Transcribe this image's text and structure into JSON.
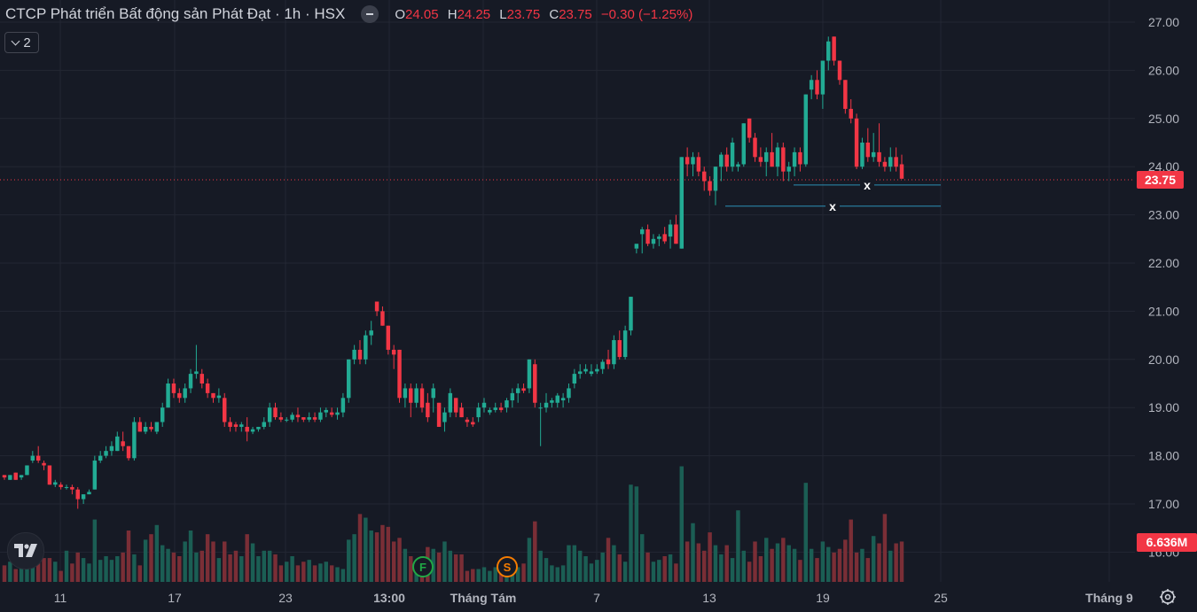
{
  "legend": {
    "title": "CTCP Phát triển Bất động sản Phát Đạt · 1h · HSX",
    "o_label": "O",
    "o": "24.05",
    "h_label": "H",
    "h": "24.25",
    "l_label": "L",
    "l": "23.75",
    "c_label": "C",
    "c": "23.75",
    "change": "−0.30 (−1.25%)"
  },
  "indicator_toggle": {
    "count": "2"
  },
  "colors": {
    "up": "#22ab94",
    "down": "#f23645",
    "up_vol": "#1b5e54",
    "down_vol": "#7a2e36",
    "grid": "#232733",
    "line": "#2a8fb5"
  },
  "chart_data": {
    "type": "candlestick",
    "ylim": [
      15.8,
      27.35
    ],
    "y_ticks": [
      "16.00",
      "17.00",
      "18.00",
      "19.00",
      "20.00",
      "21.00",
      "22.00",
      "23.00",
      "24.00",
      "25.00",
      "26.00",
      "27.00"
    ],
    "x_ticks": [
      "11",
      "17",
      "23",
      "13:00",
      "Tháng Tám",
      "7",
      "13",
      "19",
      "25",
      "Tháng 9"
    ],
    "last_price": "23.75",
    "last_volume": "6.636M",
    "horizontal_lines": [
      {
        "price": 23.62,
        "label": "x"
      },
      {
        "price": 23.18,
        "label": "x"
      }
    ],
    "events": [
      "F",
      "S"
    ],
    "candles": [
      [
        17.6,
        17.6,
        17.5,
        17.55
      ],
      [
        17.5,
        17.6,
        17.5,
        17.6
      ],
      [
        17.65,
        17.65,
        17.5,
        17.5
      ],
      [
        17.55,
        17.6,
        17.5,
        17.6
      ],
      [
        17.6,
        17.8,
        17.6,
        17.8
      ],
      [
        17.9,
        18.1,
        17.85,
        18.0
      ],
      [
        18.0,
        18.2,
        17.85,
        17.9
      ],
      [
        17.85,
        17.9,
        17.7,
        17.8
      ],
      [
        17.8,
        17.8,
        17.4,
        17.4
      ],
      [
        17.4,
        17.5,
        17.35,
        17.45
      ],
      [
        17.4,
        17.45,
        17.3,
        17.35
      ],
      [
        17.35,
        17.4,
        17.3,
        17.35
      ],
      [
        17.35,
        17.4,
        17.2,
        17.3
      ],
      [
        17.3,
        17.35,
        16.9,
        17.1
      ],
      [
        17.1,
        17.2,
        17.0,
        17.2
      ],
      [
        17.2,
        17.3,
        17.2,
        17.25
      ],
      [
        17.3,
        18.0,
        17.3,
        17.9
      ],
      [
        17.9,
        18.1,
        17.85,
        18.0
      ],
      [
        18.0,
        18.2,
        17.95,
        18.1
      ],
      [
        18.1,
        18.3,
        18.0,
        18.2
      ],
      [
        18.1,
        18.5,
        18.1,
        18.4
      ],
      [
        18.3,
        18.5,
        18.1,
        18.2
      ],
      [
        18.2,
        18.2,
        17.9,
        17.95
      ],
      [
        17.95,
        18.8,
        17.9,
        18.7
      ],
      [
        18.7,
        18.8,
        18.5,
        18.5
      ],
      [
        18.5,
        18.7,
        18.45,
        18.6
      ],
      [
        18.6,
        18.7,
        18.5,
        18.55
      ],
      [
        18.5,
        18.7,
        18.45,
        18.7
      ],
      [
        18.7,
        19.1,
        18.6,
        19.0
      ],
      [
        19.0,
        19.6,
        19.0,
        19.5
      ],
      [
        19.5,
        19.6,
        19.2,
        19.3
      ],
      [
        19.3,
        19.4,
        19.1,
        19.2
      ],
      [
        19.2,
        19.5,
        19.1,
        19.4
      ],
      [
        19.4,
        19.8,
        19.3,
        19.7
      ],
      [
        19.7,
        20.3,
        19.6,
        19.75
      ],
      [
        19.7,
        19.8,
        19.4,
        19.5
      ],
      [
        19.5,
        19.6,
        19.2,
        19.3
      ],
      [
        19.3,
        19.3,
        19.1,
        19.2
      ],
      [
        19.2,
        19.4,
        19.1,
        19.25
      ],
      [
        19.2,
        19.3,
        18.6,
        18.7
      ],
      [
        18.7,
        18.8,
        18.5,
        18.6
      ],
      [
        18.65,
        18.7,
        18.5,
        18.6
      ],
      [
        18.6,
        18.7,
        18.5,
        18.65
      ],
      [
        18.6,
        18.8,
        18.3,
        18.5
      ],
      [
        18.5,
        18.6,
        18.45,
        18.55
      ],
      [
        18.55,
        18.6,
        18.5,
        18.6
      ],
      [
        18.6,
        18.8,
        18.55,
        18.7
      ],
      [
        18.7,
        19.1,
        18.6,
        19.0
      ],
      [
        19.0,
        19.1,
        18.75,
        18.8
      ],
      [
        18.8,
        18.9,
        18.7,
        18.75
      ],
      [
        18.75,
        18.8,
        18.7,
        18.75
      ],
      [
        18.75,
        18.9,
        18.7,
        18.85
      ],
      [
        18.85,
        19.0,
        18.7,
        18.8
      ],
      [
        18.8,
        18.8,
        18.7,
        18.75
      ],
      [
        18.75,
        18.9,
        18.7,
        18.8
      ],
      [
        18.8,
        18.9,
        18.7,
        18.75
      ],
      [
        18.75,
        19.0,
        18.7,
        18.9
      ],
      [
        18.9,
        19.0,
        18.8,
        18.95
      ],
      [
        18.9,
        19.0,
        18.8,
        18.85
      ],
      [
        18.85,
        19.0,
        18.75,
        18.9
      ],
      [
        18.9,
        19.3,
        18.8,
        19.2
      ],
      [
        19.2,
        20.0,
        19.1,
        20.0
      ],
      [
        20.0,
        20.3,
        19.9,
        20.2
      ],
      [
        20.2,
        20.4,
        19.9,
        20.0
      ],
      [
        20.0,
        20.6,
        19.9,
        20.5
      ],
      [
        20.5,
        20.8,
        20.3,
        20.6
      ],
      [
        21.2,
        21.2,
        20.9,
        21.0
      ],
      [
        21.0,
        21.1,
        20.7,
        20.7
      ],
      [
        20.7,
        20.7,
        20.1,
        20.2
      ],
      [
        20.2,
        20.3,
        19.8,
        20.1
      ],
      [
        20.2,
        20.2,
        19.1,
        19.2
      ],
      [
        19.2,
        19.5,
        19.0,
        19.4
      ],
      [
        19.4,
        19.5,
        18.8,
        19.1
      ],
      [
        19.1,
        19.5,
        19.0,
        19.4
      ],
      [
        19.4,
        19.5,
        18.9,
        19.0
      ],
      [
        19.1,
        19.3,
        18.7,
        18.8
      ],
      [
        19.2,
        19.5,
        18.9,
        19.4
      ],
      [
        19.1,
        19.1,
        18.6,
        18.6
      ],
      [
        18.7,
        19.0,
        18.5,
        18.9
      ],
      [
        18.9,
        19.4,
        18.8,
        19.3
      ],
      [
        19.2,
        19.2,
        18.8,
        18.9
      ],
      [
        19.0,
        19.1,
        18.8,
        18.8
      ],
      [
        18.75,
        18.8,
        18.6,
        18.7
      ],
      [
        18.7,
        18.8,
        18.6,
        18.65
      ],
      [
        18.8,
        19.1,
        18.7,
        19.0
      ],
      [
        19.0,
        19.2,
        18.9,
        19.1
      ],
      [
        18.9,
        19.0,
        18.85,
        18.95
      ],
      [
        18.95,
        19.1,
        18.9,
        19.0
      ],
      [
        19.0,
        19.1,
        18.9,
        18.95
      ],
      [
        19.0,
        19.2,
        18.9,
        19.15
      ],
      [
        19.15,
        19.4,
        19.0,
        19.3
      ],
      [
        19.3,
        19.5,
        19.1,
        19.4
      ],
      [
        19.4,
        19.5,
        19.3,
        19.35
      ],
      [
        19.4,
        20.0,
        19.3,
        20.0
      ],
      [
        19.9,
        20.0,
        19.0,
        19.1
      ],
      [
        19.0,
        19.1,
        18.2,
        19.0
      ],
      [
        19.0,
        19.3,
        18.9,
        19.1
      ],
      [
        19.1,
        19.2,
        19.0,
        19.15
      ],
      [
        19.1,
        19.3,
        19.0,
        19.25
      ],
      [
        19.15,
        19.3,
        19.0,
        19.2
      ],
      [
        19.2,
        19.5,
        19.1,
        19.4
      ],
      [
        19.5,
        19.8,
        19.4,
        19.7
      ],
      [
        19.7,
        19.9,
        19.6,
        19.75
      ],
      [
        19.75,
        19.9,
        19.7,
        19.8
      ],
      [
        19.7,
        19.9,
        19.65,
        19.75
      ],
      [
        19.75,
        19.9,
        19.7,
        19.8
      ],
      [
        19.8,
        20.0,
        19.7,
        19.95
      ],
      [
        20.0,
        20.2,
        19.8,
        19.9
      ],
      [
        19.9,
        20.5,
        19.8,
        20.4
      ],
      [
        20.4,
        20.6,
        20.0,
        20.05
      ],
      [
        20.05,
        20.7,
        20.0,
        20.6
      ],
      [
        20.6,
        21.3,
        20.5,
        21.3
      ],
      [
        22.3,
        22.3,
        22.2,
        22.4
      ],
      [
        22.6,
        22.75,
        22.2,
        22.7
      ],
      [
        22.7,
        22.8,
        22.35,
        22.4
      ],
      [
        22.4,
        22.6,
        22.3,
        22.5
      ],
      [
        22.5,
        22.6,
        22.35,
        22.55
      ],
      [
        22.6,
        22.75,
        22.4,
        22.45
      ],
      [
        22.55,
        22.9,
        22.3,
        22.8
      ],
      [
        22.8,
        23.0,
        22.4,
        22.4
      ],
      [
        22.3,
        24.2,
        22.3,
        24.2
      ],
      [
        24.2,
        24.4,
        23.8,
        24.05
      ],
      [
        24.05,
        24.3,
        23.8,
        24.2
      ],
      [
        24.2,
        24.3,
        23.8,
        23.9
      ],
      [
        23.9,
        24.0,
        23.5,
        23.7
      ],
      [
        23.7,
        23.8,
        23.4,
        23.5
      ],
      [
        23.5,
        24.0,
        23.2,
        24.0
      ],
      [
        24.0,
        24.3,
        23.7,
        24.25
      ],
      [
        24.25,
        24.4,
        23.9,
        24.0
      ],
      [
        24.0,
        24.6,
        23.9,
        24.5
      ],
      [
        24.0,
        24.1,
        23.9,
        24.05
      ],
      [
        24.05,
        24.9,
        24.0,
        24.9
      ],
      [
        25.0,
        25.0,
        24.5,
        24.6
      ],
      [
        24.6,
        24.7,
        24.1,
        24.2
      ],
      [
        24.2,
        24.4,
        24.0,
        24.1
      ],
      [
        24.1,
        24.4,
        23.8,
        24.3
      ],
      [
        24.3,
        24.7,
        24.0,
        24.0
      ],
      [
        24.0,
        24.5,
        23.8,
        24.4
      ],
      [
        24.4,
        24.5,
        23.7,
        23.9
      ],
      [
        23.9,
        24.1,
        23.7,
        24.0
      ],
      [
        24.0,
        24.4,
        23.8,
        24.3
      ],
      [
        24.3,
        24.4,
        23.9,
        24.05
      ],
      [
        24.05,
        25.5,
        24.0,
        25.5
      ],
      [
        25.6,
        25.9,
        25.4,
        25.8
      ],
      [
        25.8,
        26.0,
        25.4,
        25.5
      ],
      [
        25.5,
        26.2,
        25.2,
        26.2
      ],
      [
        26.2,
        26.7,
        26.0,
        26.6
      ],
      [
        26.7,
        26.7,
        26.1,
        26.2
      ],
      [
        26.2,
        26.2,
        25.7,
        25.8
      ],
      [
        25.8,
        25.8,
        25.1,
        25.2
      ],
      [
        25.2,
        25.4,
        24.9,
        25.0
      ],
      [
        25.0,
        25.1,
        23.95,
        24.0
      ],
      [
        24.0,
        24.6,
        23.95,
        24.5
      ],
      [
        24.5,
        24.8,
        24.1,
        24.2
      ],
      [
        24.2,
        24.7,
        24.1,
        24.3
      ],
      [
        24.3,
        24.9,
        24.0,
        24.1
      ],
      [
        24.1,
        24.2,
        23.9,
        24.0
      ],
      [
        24.0,
        24.4,
        23.9,
        24.2
      ],
      [
        24.2,
        24.4,
        23.9,
        24.0
      ],
      [
        24.05,
        24.25,
        23.75,
        23.75
      ]
    ],
    "volumes": [
      0.9,
      1.1,
      0.7,
      1.0,
      1.3,
      1.0,
      1.4,
      1.3,
      1.3,
      1.1,
      0.6,
      1.7,
      1.0,
      1.6,
      1.3,
      1.0,
      3.4,
      1.2,
      1.4,
      1.2,
      1.4,
      1.6,
      2.8,
      1.5,
      0.9,
      2.3,
      2.6,
      3.1,
      2.0,
      1.8,
      1.6,
      1.4,
      2.2,
      2.8,
      1.6,
      1.7,
      2.6,
      2.2,
      1.3,
      2.2,
      1.5,
      1.7,
      1.4,
      2.6,
      2.1,
      1.4,
      1.7,
      1.7,
      1.5,
      0.9,
      1.1,
      1.4,
      0.9,
      1.1,
      1.2,
      0.9,
      1.0,
      1.1,
      0.9,
      0.8,
      0.7,
      2.3,
      2.6,
      3.7,
      3.5,
      2.8,
      2.7,
      3.1,
      3.0,
      2.2,
      2.4,
      1.8,
      1.4,
      0.9,
      1.4,
      1.9,
      1.8,
      1.6,
      2.2,
      1.7,
      1.5,
      1.5,
      0.6,
      0.7,
      0.7,
      0.8,
      0.6,
      0.8,
      0.9,
      0.8,
      0.8,
      0.8,
      1.0,
      2.4,
      3.3,
      1.7,
      1.3,
      0.9,
      0.8,
      0.9,
      2.0,
      2.0,
      1.7,
      1.4,
      1.0,
      1.2,
      1.6,
      2.4,
      2.0,
      1.5,
      1.1,
      5.3,
      5.2,
      2.6,
      1.6,
      1.1,
      1.2,
      1.4,
      1.5,
      1.0,
      6.3,
      2.2,
      3.2,
      2.1,
      1.7,
      2.7,
      2.0,
      1.5,
      2.0,
      1.3,
      3.9,
      1.7,
      1.1,
      2.2,
      1.4,
      2.4,
      1.8,
      2.1,
      2.4,
      2.0,
      1.8,
      1.2,
      5.4,
      1.8,
      1.3,
      2.2,
      1.9,
      1.6,
      1.8,
      2.3,
      3.4,
      1.6,
      1.8,
      1.3,
      2.5,
      2.1,
      3.7,
      1.7,
      2.1,
      2.2,
      6.636
    ]
  }
}
